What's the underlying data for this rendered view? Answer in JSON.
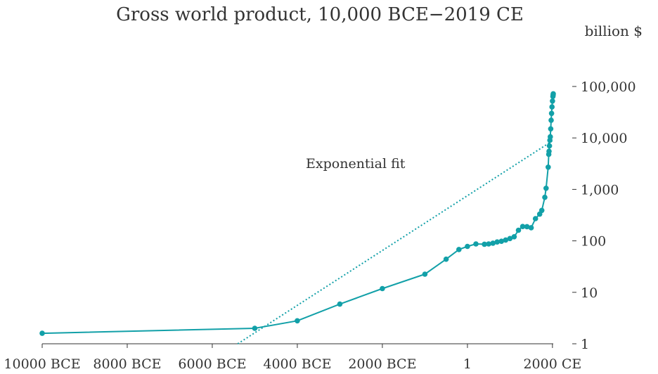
{
  "chart_data": {
    "type": "line",
    "title": "Gross world product, 10,000 BCE−2019 CE",
    "ylabel": "billion $",
    "y_scale": "log",
    "ylim": [
      1,
      100000
    ],
    "xlim": [
      -10000,
      2019
    ],
    "x_ticks": [
      {
        "value": -10000,
        "label": "10000 BCE"
      },
      {
        "value": -8000,
        "label": "8000 BCE"
      },
      {
        "value": -6000,
        "label": "6000 BCE"
      },
      {
        "value": -4000,
        "label": "4000 BCE"
      },
      {
        "value": -2000,
        "label": "2000 BCE"
      },
      {
        "value": 1,
        "label": "1"
      },
      {
        "value": 2000,
        "label": "2000 CE"
      }
    ],
    "y_ticks": [
      {
        "value": 1,
        "label": "1"
      },
      {
        "value": 10,
        "label": "10"
      },
      {
        "value": 100,
        "label": "100"
      },
      {
        "value": 1000,
        "label": "1,000"
      },
      {
        "value": 10000,
        "label": "10,000"
      },
      {
        "value": 100000,
        "label": "100,000"
      }
    ],
    "grid": false,
    "color": "#12a0a8",
    "series": [
      {
        "name": "",
        "style": "solid-with-markers",
        "points": [
          [
            -10000,
            1.6
          ],
          [
            -5000,
            2.0
          ],
          [
            -4000,
            2.8
          ],
          [
            -3000,
            5.9
          ],
          [
            -2000,
            11.8
          ],
          [
            -1000,
            22.5
          ],
          [
            -500,
            44
          ],
          [
            -200,
            68
          ],
          [
            1,
            78
          ],
          [
            200,
            87
          ],
          [
            400,
            86
          ],
          [
            500,
            87
          ],
          [
            600,
            90
          ],
          [
            700,
            95
          ],
          [
            800,
            98
          ],
          [
            900,
            104
          ],
          [
            1000,
            111
          ],
          [
            1100,
            120
          ],
          [
            1200,
            161
          ],
          [
            1300,
            190
          ],
          [
            1400,
            189
          ],
          [
            1500,
            180
          ],
          [
            1600,
            270
          ],
          [
            1700,
            330
          ],
          [
            1750,
            390
          ],
          [
            1820,
            700
          ],
          [
            1850,
            1050
          ],
          [
            1900,
            2700
          ],
          [
            1913,
            4800
          ],
          [
            1920,
            5500
          ],
          [
            1929,
            7000
          ],
          [
            1940,
            9000
          ],
          [
            1950,
            10500
          ],
          [
            1960,
            15000
          ],
          [
            1970,
            22000
          ],
          [
            1980,
            30000
          ],
          [
            1990,
            40000
          ],
          [
            2000,
            52000
          ],
          [
            2010,
            64000
          ],
          [
            2015,
            68000
          ],
          [
            2019,
            72000
          ]
        ]
      },
      {
        "name": "Exponential fit",
        "style": "dotted",
        "points": [
          [
            -5400,
            1
          ],
          [
            2000,
            8800
          ]
        ]
      }
    ],
    "annotations": [
      {
        "text": "Exponential fit",
        "x": -3800,
        "y": 2600
      }
    ]
  }
}
